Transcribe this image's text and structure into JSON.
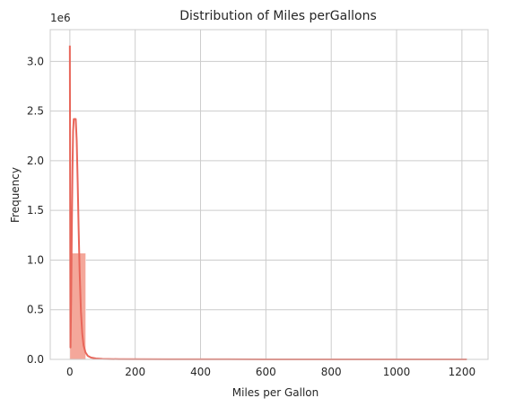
{
  "chart_data": {
    "type": "histogram",
    "title": "Distribution of Miles perGallons",
    "xlabel": "Miles per Gallon",
    "ylabel": "Frequency",
    "y_offset_text": "1e6",
    "xlim": [
      -60,
      1280
    ],
    "ylim": [
      0,
      3.32
    ],
    "x_ticks": [
      0,
      200,
      400,
      600,
      800,
      1000,
      1200
    ],
    "y_ticks": [
      0.0,
      0.5,
      1.0,
      1.5,
      2.0,
      2.5,
      3.0
    ],
    "y_tick_labels": [
      "0.0",
      "0.5",
      "1.0",
      "1.5",
      "2.0",
      "2.5",
      "3.0"
    ],
    "grid": true,
    "bins": [
      {
        "x0": 0,
        "x1": 48.6,
        "value": 1.07
      }
    ],
    "kde": {
      "x": [
        0,
        2,
        4,
        6,
        8,
        10,
        12,
        15,
        18,
        21,
        24,
        27,
        30,
        34,
        38,
        42,
        48,
        55,
        65,
        80,
        100,
        150,
        300,
        600,
        900,
        1215
      ],
      "y": [
        3.16,
        0.12,
        0.6,
        1.3,
        1.9,
        2.3,
        2.42,
        2.42,
        2.42,
        2.2,
        1.78,
        1.3,
        0.88,
        0.48,
        0.26,
        0.14,
        0.07,
        0.035,
        0.018,
        0.009,
        0.005,
        0.002,
        0.0008,
        0.0005,
        0.0003,
        0.0002
      ]
    },
    "colors": {
      "bar": "#f4a79a",
      "line": "#e8665a",
      "grid": "#cccccc",
      "spine": "#cccccc"
    }
  }
}
